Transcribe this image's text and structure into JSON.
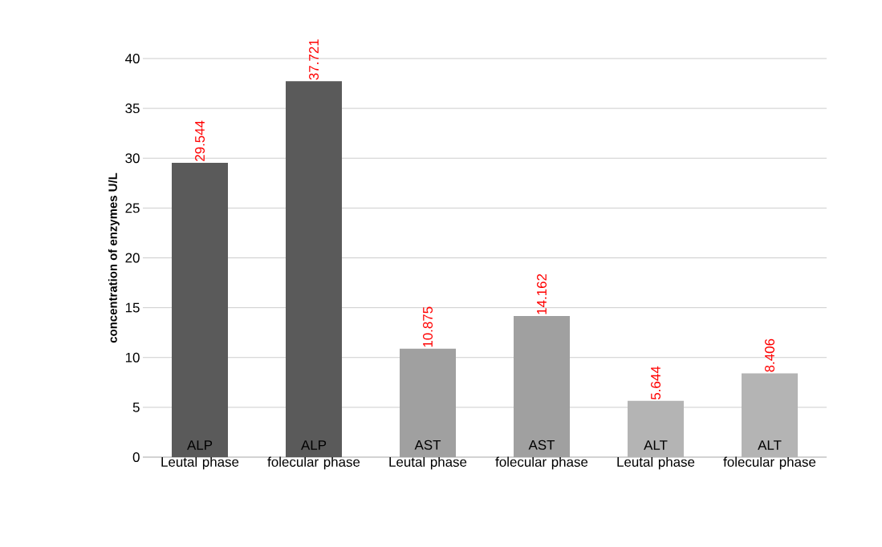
{
  "chart_data": {
    "type": "bar",
    "ylabel": "concentration of enzymes U/L",
    "categories": [
      "Leutal phase",
      "folecular phase",
      "Leutal phase",
      "folecular phase",
      "Leutal phase",
      "folecular phase"
    ],
    "values": [
      29.544,
      37.721,
      10.875,
      14.162,
      5.644,
      8.406
    ],
    "colors": [
      "#5a5a5a",
      "#5a5a5a",
      "#a0a0a0",
      "#a0a0a0",
      "#b4b4b4",
      "#b4b4b4"
    ],
    "value_labels": [
      "29.544",
      "37.721",
      "10.875",
      "14.162",
      "5.644",
      "8.406"
    ],
    "annotations": [
      "ALP",
      "ALP",
      "AST",
      "AST",
      "ALT",
      "ALT"
    ],
    "ylim": [
      0,
      40
    ],
    "yticks": [
      0,
      5,
      10,
      15,
      20,
      25,
      30,
      35,
      40
    ],
    "grid": "y"
  }
}
